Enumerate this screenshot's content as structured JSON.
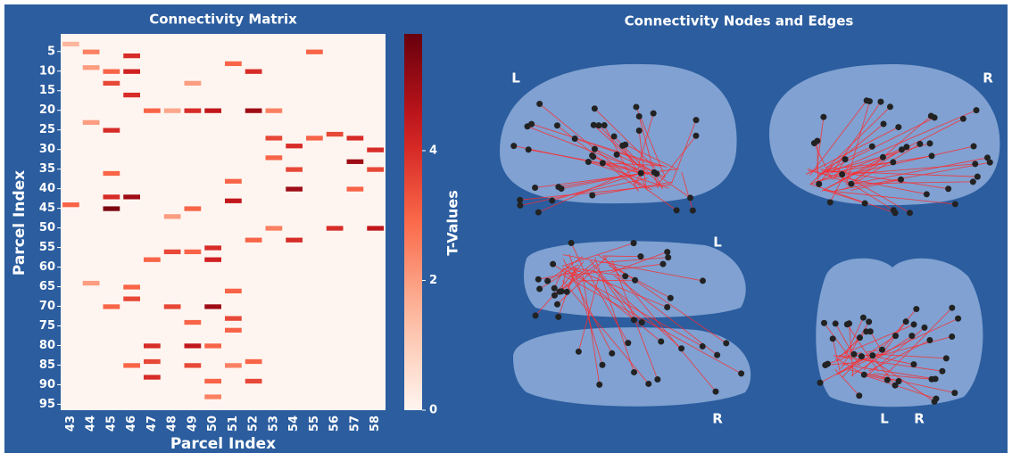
{
  "chart_data": [
    {
      "type": "heatmap",
      "title": "Connectivity Matrix",
      "x_label": "Parcel Index",
      "y_label": "Parcel Index",
      "categories": [
        43,
        44,
        45,
        46,
        47,
        48,
        49,
        50,
        51,
        52,
        53,
        54,
        55,
        56,
        57,
        58
      ],
      "ylim": [
        0.5,
        96.5
      ],
      "yticks": [
        5,
        10,
        15,
        20,
        25,
        30,
        35,
        40,
        45,
        50,
        55,
        60,
        65,
        70,
        75,
        80,
        85,
        90,
        95
      ],
      "cells": {
        "x": [
          43,
          44,
          44,
          45,
          45,
          46,
          46,
          46,
          47,
          48,
          49,
          49,
          50,
          51,
          52,
          52,
          53,
          53,
          53,
          54,
          54,
          54,
          55,
          55,
          56,
          56,
          57,
          57,
          57,
          58,
          58,
          58,
          45,
          45,
          45,
          46,
          51,
          51,
          48,
          49,
          53,
          54,
          52,
          47,
          48,
          49,
          50,
          50,
          44,
          46,
          46,
          51,
          45,
          48,
          50,
          49,
          51,
          51,
          47,
          47,
          47,
          49,
          49,
          50,
          50,
          46,
          52,
          52,
          50,
          51,
          43,
          44,
          45
        ],
        "y": [
          3,
          5,
          9,
          10,
          13,
          6,
          10,
          16,
          20,
          20,
          20,
          13,
          20,
          8,
          10,
          20,
          20,
          27,
          32,
          29,
          35,
          40,
          5,
          27,
          26,
          50,
          27,
          33,
          40,
          30,
          35,
          50,
          36,
          42,
          45,
          42,
          38,
          43,
          47,
          45,
          50,
          53,
          53,
          58,
          56,
          56,
          55,
          58,
          64,
          65,
          68,
          66,
          70,
          70,
          70,
          74,
          73,
          76,
          80,
          84,
          88,
          80,
          85,
          80,
          89,
          85,
          84,
          89,
          93,
          85,
          44,
          23,
          25
        ],
        "values": [
          1.5,
          2.5,
          2,
          3,
          3.5,
          4,
          4.2,
          4,
          3,
          1.8,
          4,
          2,
          4.5,
          3,
          4,
          5,
          2.5,
          3.5,
          3,
          4,
          3.5,
          5,
          3,
          3,
          3.5,
          4,
          4,
          5,
          3,
          4,
          3.5,
          4.5,
          3,
          4,
          5.5,
          5,
          3,
          4.5,
          2,
          3,
          2.5,
          4,
          3,
          3,
          3.5,
          3,
          4,
          4.2,
          2,
          3,
          3.5,
          3,
          3,
          3.5,
          5,
          3,
          3.5,
          3,
          4,
          3.5,
          4,
          4.5,
          3.5,
          3,
          3,
          3,
          3,
          3.5,
          2.5,
          2.5,
          3,
          2,
          4
        ]
      },
      "colorbar": {
        "label": "T-Values",
        "ylim": [
          0,
          5.8
        ],
        "yticks": [
          0,
          2,
          4
        ]
      }
    },
    {
      "type": "brain",
      "title": "Connectivity Nodes and Edges",
      "view_labels": [
        "L",
        "R",
        "L",
        "R",
        "L",
        "R"
      ]
    }
  ]
}
